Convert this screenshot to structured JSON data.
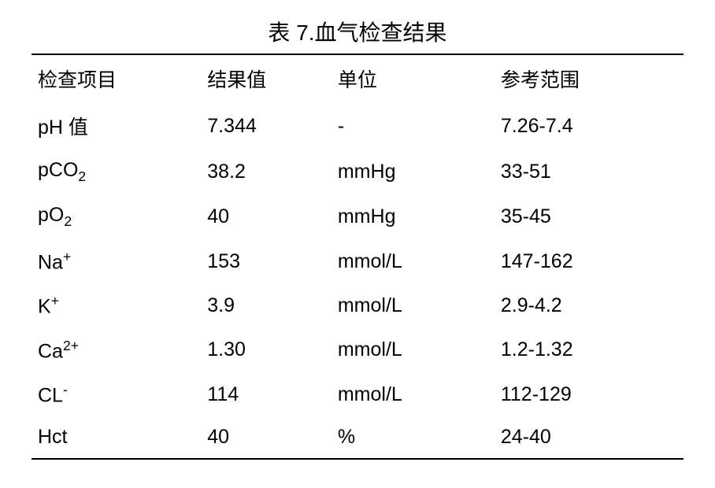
{
  "table": {
    "title": "表 7.血气检查结果",
    "type": "table",
    "background_color": "#ffffff",
    "text_color": "#000000",
    "border_color": "#000000",
    "title_fontsize": 28,
    "header_fontsize": 25,
    "cell_fontsize": 25,
    "columns": [
      {
        "key": "item",
        "label": "检查项目",
        "width": "26%"
      },
      {
        "key": "result",
        "label": "结果值",
        "width": "20%"
      },
      {
        "key": "unit",
        "label": "单位",
        "width": "25%"
      },
      {
        "key": "range",
        "label": "参考范围",
        "width": "29%"
      }
    ],
    "rows": [
      {
        "item_html": "pH 值",
        "result": "7.344",
        "unit": "-",
        "range": "7.26-7.4"
      },
      {
        "item_html": "pCO<sub>2</sub>",
        "result": "38.2",
        "unit": "mmHg",
        "range": "33-51"
      },
      {
        "item_html": "pO<sub>2</sub>",
        "result": "40",
        "unit": "mmHg",
        "range": "35-45"
      },
      {
        "item_html": "Na<sup>+</sup>",
        "result": "153",
        "unit": "mmol/L",
        "range": "147-162"
      },
      {
        "item_html": "K<sup>+</sup>",
        "result": "3.9",
        "unit": "mmol/L",
        "range": "2.9-4.2"
      },
      {
        "item_html": "Ca<sup>2+</sup>",
        "result": "1.30",
        "unit": "mmol/L",
        "range": "1.2-1.32"
      },
      {
        "item_html": "CL<sup>-</sup>",
        "result": "114",
        "unit": "mmol/L",
        "range": "112-129"
      },
      {
        "item_html": "Hct",
        "result": "40",
        "unit": "%",
        "range": "24-40"
      }
    ]
  }
}
